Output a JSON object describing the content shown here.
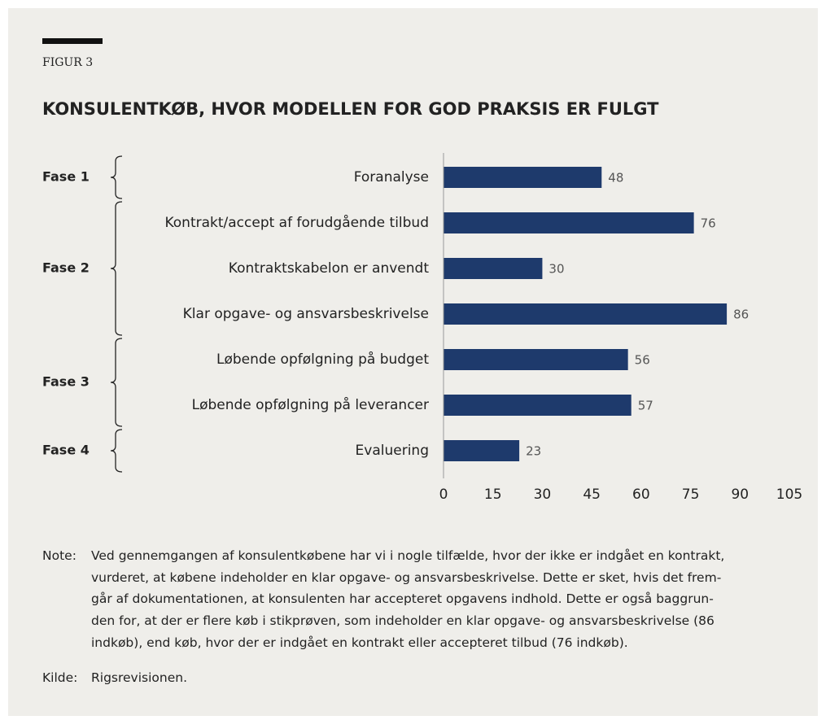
{
  "figure_label": "FIGUR 3",
  "chart_data": {
    "type": "bar",
    "orientation": "horizontal",
    "title": "KONSULENTKØB, HVOR MODELLEN FOR GOD PRAKSIS ER FULGT",
    "groups": [
      {
        "name": "Fase 1",
        "categories": [
          "Foranalyse"
        ],
        "values": [
          48
        ]
      },
      {
        "name": "Fase 2",
        "categories": [
          "Kontrakt/accept af forudgående tilbud",
          "Kontraktskabelon er anvendt",
          "Klar opgave- og ansvarsbeskrivelse"
        ],
        "values": [
          76,
          30,
          86
        ]
      },
      {
        "name": "Fase 3",
        "categories": [
          "Løbende opfølgning på budget",
          "Løbende opfølgning på leverancer"
        ],
        "values": [
          56,
          57
        ]
      },
      {
        "name": "Fase 4",
        "categories": [
          "Evaluering"
        ],
        "values": [
          23
        ]
      }
    ],
    "color": "#1e3a6c",
    "xlim": [
      0,
      105
    ],
    "xticks": [
      0,
      15,
      30,
      45,
      60,
      75,
      90,
      105
    ]
  },
  "note": {
    "label": "Note:",
    "lines": [
      "Ved gennemgangen af konsulentkøbene har vi i nogle tilfælde, hvor der ikke er indgået en kontrakt,",
      "vurderet, at købene indeholder en klar opgave- og ansvarsbeskrivelse. Dette er sket, hvis det frem-",
      "går af dokumentationen, at konsulenten har accepteret opgavens indhold. Dette er også baggrun-",
      "den for, at der er flere køb i stikprøven, som indeholder en klar opgave- og ansvarsbeskrivelse (86",
      "indkøb), end køb, hvor der er indgået en kontrakt eller accepteret tilbud (76 indkøb)."
    ]
  },
  "source": {
    "label": "Kilde:",
    "text": "Rigsrevisionen."
  }
}
